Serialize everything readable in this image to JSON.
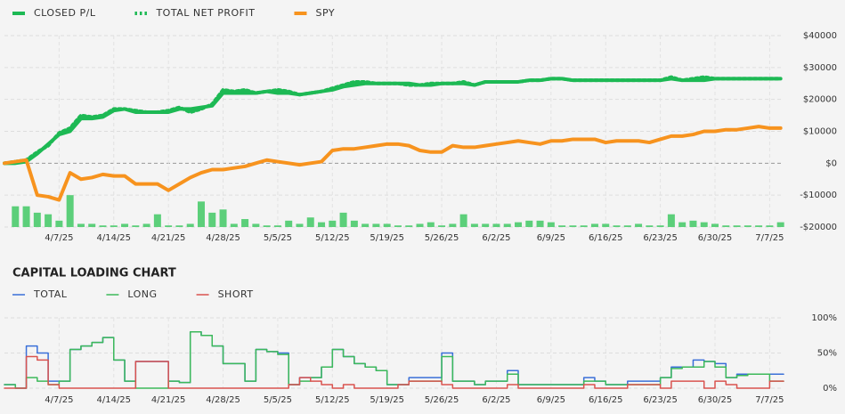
{
  "chart_data": [
    {
      "type": "line",
      "categories": [
        null,
        null,
        null,
        null,
        null,
        "4/7/25",
        null,
        null,
        null,
        null,
        "4/14/25",
        null,
        null,
        null,
        null,
        "4/21/25",
        null,
        null,
        null,
        null,
        "4/28/25",
        null,
        null,
        null,
        null,
        "5/5/25",
        null,
        null,
        null,
        null,
        "5/12/25",
        null,
        null,
        null,
        null,
        "5/19/25",
        null,
        null,
        null,
        null,
        "5/26/25",
        null,
        null,
        null,
        null,
        "6/2/25",
        null,
        null,
        null,
        null,
        "6/9/25",
        null,
        null,
        null,
        null,
        "6/16/25",
        null,
        null,
        null,
        null,
        "6/23/25",
        null,
        null,
        null,
        null,
        "6/30/25",
        null,
        null,
        null,
        null,
        "7/7/25",
        null
      ],
      "ylim": [
        -20000,
        40000
      ],
      "yticks": [
        {
          "value": -20000,
          "label": "-$20000"
        },
        {
          "value": -10000,
          "label": "-$10000"
        },
        {
          "value": 0,
          "label": "$0"
        },
        {
          "value": 10000,
          "label": "$10000"
        },
        {
          "value": 20000,
          "label": "$20000"
        },
        {
          "value": 30000,
          "label": "$30000"
        },
        {
          "value": 40000,
          "label": "$40000"
        }
      ],
      "grid": true,
      "series": [
        {
          "type": "bar",
          "color": "#5ccf7a",
          "values": [
            -20000,
            -13500,
            -13500,
            -15500,
            -16000,
            -18000,
            -10000,
            -19000,
            -19000,
            -19500,
            -19500,
            -19000,
            -19500,
            -19000,
            -16000,
            -19500,
            -19500,
            -19000,
            -12000,
            -15500,
            -14500,
            -19000,
            -17500,
            -19000,
            -19500,
            -19500,
            -18000,
            -19000,
            -17000,
            -18500,
            -18000,
            -15500,
            -18000,
            -19000,
            -19000,
            -19000,
            -19500,
            -19500,
            -19000,
            -18500,
            -19500,
            -19000,
            -16000,
            -19000,
            -19000,
            -19000,
            -19000,
            -18500,
            -18000,
            -18000,
            -18500,
            -19500,
            -19500,
            -19500,
            -19000,
            -19000,
            -19500,
            -19500,
            -19000,
            -19500,
            -19500,
            -16000,
            -18500,
            -18000,
            -18500,
            -19000,
            -19500,
            -19500,
            -19500,
            -19500,
            -19500,
            -18500
          ]
        },
        {
          "name": "CLOSED P/L",
          "color": "#1db954",
          "values": [
            0,
            0,
            500,
            3000,
            6000,
            9000,
            10000,
            14000,
            14000,
            14500,
            16500,
            17000,
            16000,
            16000,
            16000,
            16000,
            17000,
            17000,
            17500,
            18000,
            22000,
            22000,
            22000,
            22000,
            22500,
            22000,
            22000,
            21500,
            22000,
            22500,
            23000,
            24000,
            24500,
            25000,
            25000,
            25000,
            25000,
            25000,
            24500,
            24500,
            25000,
            25000,
            25000,
            24500,
            25500,
            25500,
            25500,
            25500,
            26000,
            26000,
            26500,
            26500,
            26000,
            26000,
            26000,
            26000,
            26000,
            26000,
            26000,
            26000,
            26000,
            26500,
            26000,
            26000,
            26000,
            26500,
            26500,
            26500,
            26500,
            26500,
            26500,
            26500
          ]
        },
        {
          "name": "TOTAL NET PROFIT",
          "color": "#1db954",
          "style": "dotted",
          "values": [
            0,
            500,
            1000,
            3500,
            5500,
            9500,
            11000,
            15000,
            14500,
            15000,
            17000,
            17000,
            16500,
            16000,
            16000,
            16500,
            17500,
            16000,
            17000,
            18500,
            23000,
            22500,
            23000,
            22000,
            22500,
            23000,
            22500,
            21500,
            22000,
            22500,
            23500,
            24500,
            25500,
            25500,
            25000,
            25000,
            25000,
            24500,
            24500,
            25000,
            25000,
            25000,
            25500,
            24500,
            25500,
            25500,
            25500,
            25500,
            26000,
            26000,
            26500,
            26500,
            26000,
            26000,
            26000,
            26000,
            26000,
            26000,
            26000,
            26000,
            26000,
            27000,
            26000,
            26500,
            27000,
            26500,
            26500,
            26500,
            26500,
            26500,
            26500,
            26500
          ]
        },
        {
          "name": "SPY",
          "color": "#f7931e",
          "values": [
            0,
            500,
            1000,
            -10000,
            -10500,
            -11500,
            -3000,
            -5000,
            -4500,
            -3500,
            -4000,
            -4000,
            -6500,
            -6500,
            -6500,
            -8500,
            -6500,
            -4500,
            -3000,
            -2000,
            -2000,
            -1500,
            -1000,
            0,
            1000,
            500,
            0,
            -500,
            0,
            500,
            4000,
            4500,
            4500,
            5000,
            5500,
            6000,
            6000,
            5500,
            4000,
            3500,
            3500,
            5500,
            5000,
            5000,
            5500,
            6000,
            6500,
            7000,
            6500,
            6000,
            7000,
            7000,
            7500,
            7500,
            7500,
            6500,
            7000,
            7000,
            7000,
            6500,
            7500,
            8500,
            8500,
            9000,
            10000,
            10000,
            10500,
            10500,
            11000,
            11500,
            11000,
            11000
          ]
        }
      ]
    },
    {
      "type": "step",
      "title": "CAPITAL LOADING CHART",
      "categories": [
        null,
        null,
        null,
        null,
        null,
        "4/7/25",
        null,
        null,
        null,
        null,
        "4/14/25",
        null,
        null,
        null,
        null,
        "4/21/25",
        null,
        null,
        null,
        null,
        "4/28/25",
        null,
        null,
        null,
        null,
        "5/5/25",
        null,
        null,
        null,
        null,
        "5/12/25",
        null,
        null,
        null,
        null,
        "5/19/25",
        null,
        null,
        null,
        null,
        "5/26/25",
        null,
        null,
        null,
        null,
        "6/2/25",
        null,
        null,
        null,
        null,
        "6/9/25",
        null,
        null,
        null,
        null,
        "6/16/25",
        null,
        null,
        null,
        null,
        "6/23/25",
        null,
        null,
        null,
        null,
        "6/30/25",
        null,
        null,
        null,
        null,
        "7/7/25",
        null
      ],
      "ylim": [
        0,
        100
      ],
      "yticks": [
        {
          "value": 0,
          "label": "0%"
        },
        {
          "value": 50,
          "label": "50%"
        },
        {
          "value": 100,
          "label": "100%"
        }
      ],
      "grid": true,
      "series": [
        {
          "name": "TOTAL",
          "color": "#3a6fd8",
          "values": [
            5,
            0,
            60,
            50,
            10,
            10,
            55,
            60,
            65,
            72,
            40,
            10,
            38,
            38,
            38,
            10,
            8,
            80,
            75,
            60,
            35,
            35,
            10,
            55,
            52,
            50,
            5,
            15,
            15,
            30,
            55,
            45,
            35,
            30,
            25,
            5,
            5,
            15,
            15,
            15,
            50,
            10,
            10,
            5,
            10,
            10,
            25,
            5,
            5,
            5,
            5,
            5,
            5,
            15,
            10,
            5,
            5,
            10,
            10,
            10,
            15,
            30,
            30,
            40,
            38,
            35,
            15,
            20,
            20,
            20,
            20,
            20
          ]
        },
        {
          "name": "LONG",
          "color": "#3cb95a",
          "values": [
            5,
            0,
            15,
            10,
            5,
            10,
            55,
            60,
            65,
            72,
            40,
            10,
            0,
            0,
            0,
            10,
            8,
            80,
            75,
            60,
            35,
            35,
            10,
            55,
            52,
            48,
            5,
            10,
            15,
            30,
            55,
            45,
            35,
            30,
            25,
            5,
            5,
            10,
            10,
            10,
            45,
            10,
            10,
            5,
            10,
            10,
            20,
            5,
            5,
            5,
            5,
            5,
            5,
            10,
            10,
            5,
            5,
            5,
            5,
            5,
            15,
            28,
            30,
            30,
            38,
            30,
            15,
            18,
            20,
            20,
            10,
            10
          ]
        },
        {
          "name": "SHORT",
          "color": "#d9534f",
          "values": [
            0,
            0,
            45,
            40,
            5,
            0,
            0,
            0,
            0,
            0,
            0,
            0,
            38,
            38,
            38,
            0,
            0,
            0,
            0,
            0,
            0,
            0,
            0,
            0,
            0,
            0,
            5,
            15,
            10,
            5,
            0,
            5,
            0,
            0,
            0,
            0,
            5,
            10,
            10,
            10,
            5,
            0,
            0,
            0,
            0,
            0,
            5,
            0,
            0,
            0,
            0,
            0,
            0,
            5,
            0,
            0,
            0,
            5,
            5,
            5,
            0,
            10,
            10,
            10,
            0,
            10,
            5,
            0,
            0,
            0,
            10,
            10
          ]
        }
      ]
    }
  ]
}
